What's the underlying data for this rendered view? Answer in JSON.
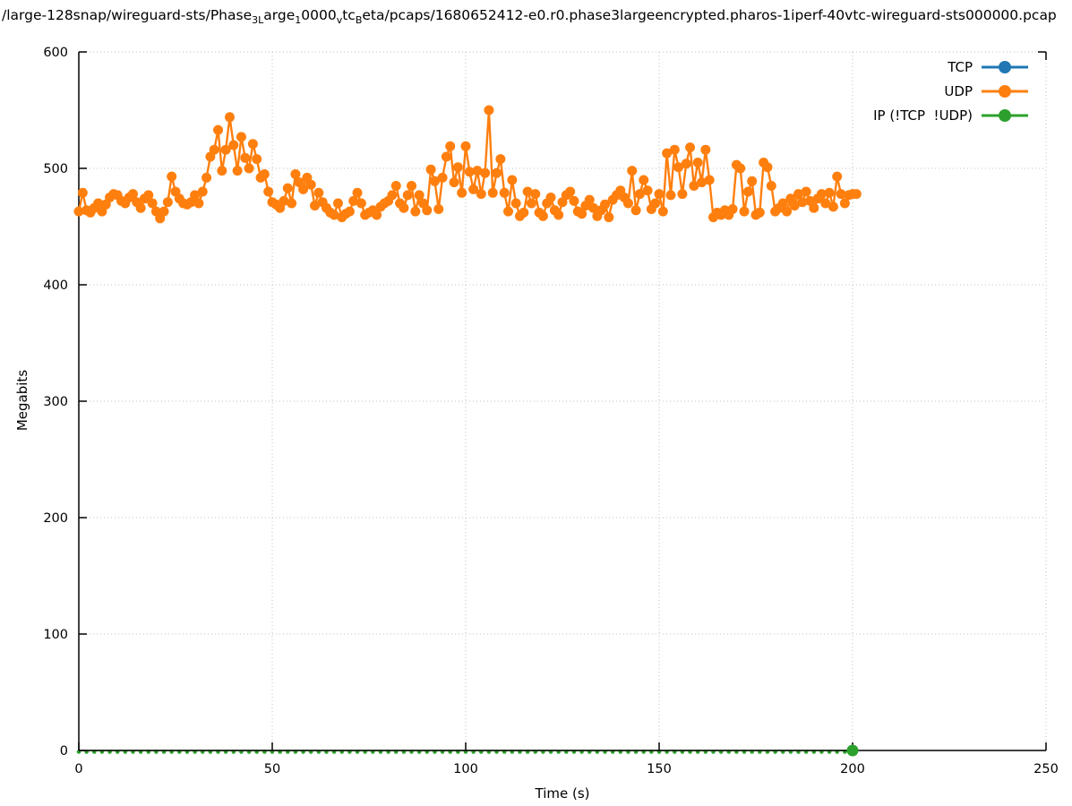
{
  "title": {
    "text": "/large-128snap/wireguard-sts/Phase_3Large_10000_vtc_Beta/pcaps/1680652412-e0.r0.phase3largeencrypted.pharos-1iperf-40vtc-wireguard-sts000000.pcap",
    "segments": [
      {
        "t": "/large-128snap/wireguard-sts/Phase",
        "sub": false
      },
      {
        "t": "3L",
        "sub": true
      },
      {
        "t": "arge",
        "sub": false
      },
      {
        "t": "1",
        "sub": true
      },
      {
        "t": "0000",
        "sub": false
      },
      {
        "t": "v",
        "sub": true
      },
      {
        "t": "tc",
        "sub": false
      },
      {
        "t": "B",
        "sub": true
      },
      {
        "t": "eta/pcaps/1680652412-e0.r0.phase3largeencrypted.pharos-1iperf-40vtc-wireguard-sts000000.pcap",
        "sub": false
      }
    ]
  },
  "axes": {
    "xlabel": "Time (s)",
    "ylabel": "Megabits"
  },
  "legend": {
    "items": [
      {
        "label": "TCP",
        "color": "#1f77b4"
      },
      {
        "label": "UDP",
        "color": "#ff7f0e"
      },
      {
        "label": "IP (!TCP  !UDP)",
        "color": "#2ca02c"
      }
    ]
  },
  "chart_data": {
    "type": "line",
    "title": "/large-128snap/wireguard-sts/Phase_3Large_10000_vtc_Beta/pcaps/1680652412-e0.r0.phase3largeencrypted.pharos-1iperf-40vtc-wireguard-sts000000.pcap",
    "xlabel": "Time (s)",
    "ylabel": "Megabits",
    "xlim": [
      0,
      250
    ],
    "ylim": [
      0,
      600
    ],
    "xticks": [
      0,
      50,
      100,
      150,
      200,
      250
    ],
    "yticks": [
      0,
      100,
      200,
      300,
      400,
      500,
      600
    ],
    "grid": true,
    "grid_color": "#c0c0c0",
    "legend_position": "top-right",
    "marker": "filled-circle",
    "series": [
      {
        "name": "TCP",
        "color": "#1f77b4",
        "points": []
      },
      {
        "name": "UDP",
        "color": "#ff7f0e",
        "points": [
          [
            0,
            463
          ],
          [
            1,
            479
          ],
          [
            2,
            464
          ],
          [
            3,
            462
          ],
          [
            4,
            466
          ],
          [
            5,
            470
          ],
          [
            6,
            463
          ],
          [
            7,
            469
          ],
          [
            8,
            475
          ],
          [
            9,
            478
          ],
          [
            10,
            477
          ],
          [
            11,
            472
          ],
          [
            12,
            470
          ],
          [
            13,
            475
          ],
          [
            14,
            478
          ],
          [
            15,
            471
          ],
          [
            16,
            466
          ],
          [
            17,
            474
          ],
          [
            18,
            477
          ],
          [
            19,
            470
          ],
          [
            20,
            463
          ],
          [
            21,
            457
          ],
          [
            22,
            463
          ],
          [
            23,
            471
          ],
          [
            24,
            493
          ],
          [
            25,
            480
          ],
          [
            26,
            474
          ],
          [
            27,
            470
          ],
          [
            28,
            469
          ],
          [
            29,
            471
          ],
          [
            30,
            477
          ],
          [
            31,
            470
          ],
          [
            32,
            480
          ],
          [
            33,
            492
          ],
          [
            34,
            510
          ],
          [
            35,
            516
          ],
          [
            36,
            533
          ],
          [
            37,
            498
          ],
          [
            38,
            516
          ],
          [
            39,
            544
          ],
          [
            40,
            520
          ],
          [
            41,
            498
          ],
          [
            42,
            527
          ],
          [
            43,
            509
          ],
          [
            44,
            500
          ],
          [
            45,
            521
          ],
          [
            46,
            508
          ],
          [
            47,
            492
          ],
          [
            48,
            495
          ],
          [
            49,
            480
          ],
          [
            50,
            471
          ],
          [
            51,
            469
          ],
          [
            52,
            466
          ],
          [
            53,
            472
          ],
          [
            54,
            483
          ],
          [
            55,
            470
          ],
          [
            56,
            495
          ],
          [
            57,
            488
          ],
          [
            58,
            482
          ],
          [
            59,
            492
          ],
          [
            60,
            486
          ],
          [
            61,
            468
          ],
          [
            62,
            479
          ],
          [
            63,
            471
          ],
          [
            64,
            466
          ],
          [
            65,
            462
          ],
          [
            66,
            460
          ],
          [
            67,
            470
          ],
          [
            68,
            458
          ],
          [
            69,
            461
          ],
          [
            70,
            463
          ],
          [
            71,
            472
          ],
          [
            72,
            479
          ],
          [
            73,
            470
          ],
          [
            74,
            460
          ],
          [
            75,
            462
          ],
          [
            76,
            464
          ],
          [
            77,
            460
          ],
          [
            78,
            467
          ],
          [
            79,
            470
          ],
          [
            80,
            472
          ],
          [
            81,
            477
          ],
          [
            82,
            485
          ],
          [
            83,
            470
          ],
          [
            84,
            466
          ],
          [
            85,
            477
          ],
          [
            86,
            485
          ],
          [
            87,
            463
          ],
          [
            88,
            477
          ],
          [
            89,
            470
          ],
          [
            90,
            464
          ],
          [
            91,
            499
          ],
          [
            92,
            489
          ],
          [
            93,
            465
          ],
          [
            94,
            492
          ],
          [
            95,
            510
          ],
          [
            96,
            519
          ],
          [
            97,
            488
          ],
          [
            98,
            501
          ],
          [
            99,
            479
          ],
          [
            100,
            519
          ],
          [
            101,
            497
          ],
          [
            102,
            482
          ],
          [
            103,
            498
          ],
          [
            104,
            478
          ],
          [
            105,
            496
          ],
          [
            106,
            550
          ],
          [
            107,
            479
          ],
          [
            108,
            496
          ],
          [
            109,
            508
          ],
          [
            110,
            479
          ],
          [
            111,
            463
          ],
          [
            112,
            490
          ],
          [
            113,
            470
          ],
          [
            114,
            459
          ],
          [
            115,
            462
          ],
          [
            116,
            480
          ],
          [
            117,
            470
          ],
          [
            118,
            478
          ],
          [
            119,
            462
          ],
          [
            120,
            459
          ],
          [
            121,
            470
          ],
          [
            122,
            475
          ],
          [
            123,
            464
          ],
          [
            124,
            460
          ],
          [
            125,
            471
          ],
          [
            126,
            477
          ],
          [
            127,
            480
          ],
          [
            128,
            472
          ],
          [
            129,
            463
          ],
          [
            130,
            461
          ],
          [
            131,
            468
          ],
          [
            132,
            473
          ],
          [
            133,
            466
          ],
          [
            134,
            459
          ],
          [
            135,
            464
          ],
          [
            136,
            469
          ],
          [
            137,
            458
          ],
          [
            138,
            473
          ],
          [
            139,
            477
          ],
          [
            140,
            481
          ],
          [
            141,
            475
          ],
          [
            142,
            470
          ],
          [
            143,
            498
          ],
          [
            144,
            464
          ],
          [
            145,
            478
          ],
          [
            146,
            490
          ],
          [
            147,
            481
          ],
          [
            148,
            465
          ],
          [
            149,
            470
          ],
          [
            150,
            478
          ],
          [
            151,
            463
          ],
          [
            152,
            513
          ],
          [
            153,
            477
          ],
          [
            154,
            516
          ],
          [
            155,
            501
          ],
          [
            156,
            478
          ],
          [
            157,
            504
          ],
          [
            158,
            518
          ],
          [
            159,
            485
          ],
          [
            160,
            505
          ],
          [
            161,
            488
          ],
          [
            162,
            516
          ],
          [
            163,
            490
          ],
          [
            164,
            458
          ],
          [
            165,
            462
          ],
          [
            166,
            460
          ],
          [
            167,
            464
          ],
          [
            168,
            460
          ],
          [
            169,
            465
          ],
          [
            170,
            503
          ],
          [
            171,
            500
          ],
          [
            172,
            463
          ],
          [
            173,
            480
          ],
          [
            174,
            489
          ],
          [
            175,
            460
          ],
          [
            176,
            462
          ],
          [
            177,
            505
          ],
          [
            178,
            501
          ],
          [
            179,
            485
          ],
          [
            180,
            463
          ],
          [
            181,
            466
          ],
          [
            182,
            470
          ],
          [
            183,
            463
          ],
          [
            184,
            474
          ],
          [
            185,
            468
          ],
          [
            186,
            478
          ],
          [
            187,
            471
          ],
          [
            188,
            480
          ],
          [
            189,
            472
          ],
          [
            190,
            466
          ],
          [
            191,
            474
          ],
          [
            192,
            478
          ],
          [
            193,
            470
          ],
          [
            194,
            479
          ],
          [
            195,
            467
          ],
          [
            196,
            493
          ],
          [
            197,
            478
          ],
          [
            198,
            470
          ],
          [
            199,
            477
          ],
          [
            200,
            478
          ],
          [
            201,
            478
          ]
        ]
      },
      {
        "name": "IP (!TCP  !UDP)",
        "color": "#2ca02c",
        "points": [
          [
            0,
            0
          ],
          [
            2,
            0
          ],
          [
            4,
            0
          ],
          [
            6,
            0
          ],
          [
            8,
            0
          ],
          [
            10,
            0
          ],
          [
            12,
            0
          ],
          [
            14,
            0
          ],
          [
            16,
            0
          ],
          [
            18,
            0
          ],
          [
            20,
            0
          ],
          [
            22,
            0
          ],
          [
            24,
            0
          ],
          [
            26,
            0
          ],
          [
            28,
            0
          ],
          [
            30,
            0
          ],
          [
            32,
            0
          ],
          [
            34,
            0
          ],
          [
            36,
            0
          ],
          [
            38,
            0
          ],
          [
            40,
            0
          ],
          [
            42,
            0
          ],
          [
            44,
            0
          ],
          [
            46,
            0
          ],
          [
            48,
            0
          ],
          [
            50,
            0
          ],
          [
            52,
            0
          ],
          [
            54,
            0
          ],
          [
            56,
            0
          ],
          [
            58,
            0
          ],
          [
            60,
            0
          ],
          [
            62,
            0
          ],
          [
            64,
            0
          ],
          [
            66,
            0
          ],
          [
            68,
            0
          ],
          [
            70,
            0
          ],
          [
            72,
            0
          ],
          [
            74,
            0
          ],
          [
            76,
            0
          ],
          [
            78,
            0
          ],
          [
            80,
            0
          ],
          [
            82,
            0
          ],
          [
            84,
            0
          ],
          [
            86,
            0
          ],
          [
            88,
            0
          ],
          [
            90,
            0
          ],
          [
            92,
            0
          ],
          [
            94,
            0
          ],
          [
            96,
            0
          ],
          [
            98,
            0
          ],
          [
            100,
            0
          ],
          [
            102,
            0
          ],
          [
            104,
            0
          ],
          [
            106,
            0
          ],
          [
            108,
            0
          ],
          [
            110,
            0
          ],
          [
            112,
            0
          ],
          [
            114,
            0
          ],
          [
            116,
            0
          ],
          [
            118,
            0
          ],
          [
            120,
            0
          ],
          [
            122,
            0
          ],
          [
            124,
            0
          ],
          [
            126,
            0
          ],
          [
            128,
            0
          ],
          [
            130,
            0
          ],
          [
            132,
            0
          ],
          [
            134,
            0
          ],
          [
            136,
            0
          ],
          [
            138,
            0
          ],
          [
            140,
            0
          ],
          [
            142,
            0
          ],
          [
            144,
            0
          ],
          [
            146,
            0
          ],
          [
            148,
            0
          ],
          [
            150,
            0
          ],
          [
            152,
            0
          ],
          [
            154,
            0
          ],
          [
            156,
            0
          ],
          [
            158,
            0
          ],
          [
            160,
            0
          ],
          [
            162,
            0
          ],
          [
            164,
            0
          ],
          [
            166,
            0
          ],
          [
            168,
            0
          ],
          [
            170,
            0
          ],
          [
            172,
            0
          ],
          [
            174,
            0
          ],
          [
            176,
            0
          ],
          [
            178,
            0
          ],
          [
            180,
            0
          ],
          [
            182,
            0
          ],
          [
            184,
            0
          ],
          [
            186,
            0
          ],
          [
            188,
            0
          ],
          [
            190,
            0
          ],
          [
            192,
            0
          ],
          [
            194,
            0
          ],
          [
            196,
            0
          ],
          [
            198,
            0
          ],
          [
            200,
            0
          ]
        ]
      }
    ]
  }
}
